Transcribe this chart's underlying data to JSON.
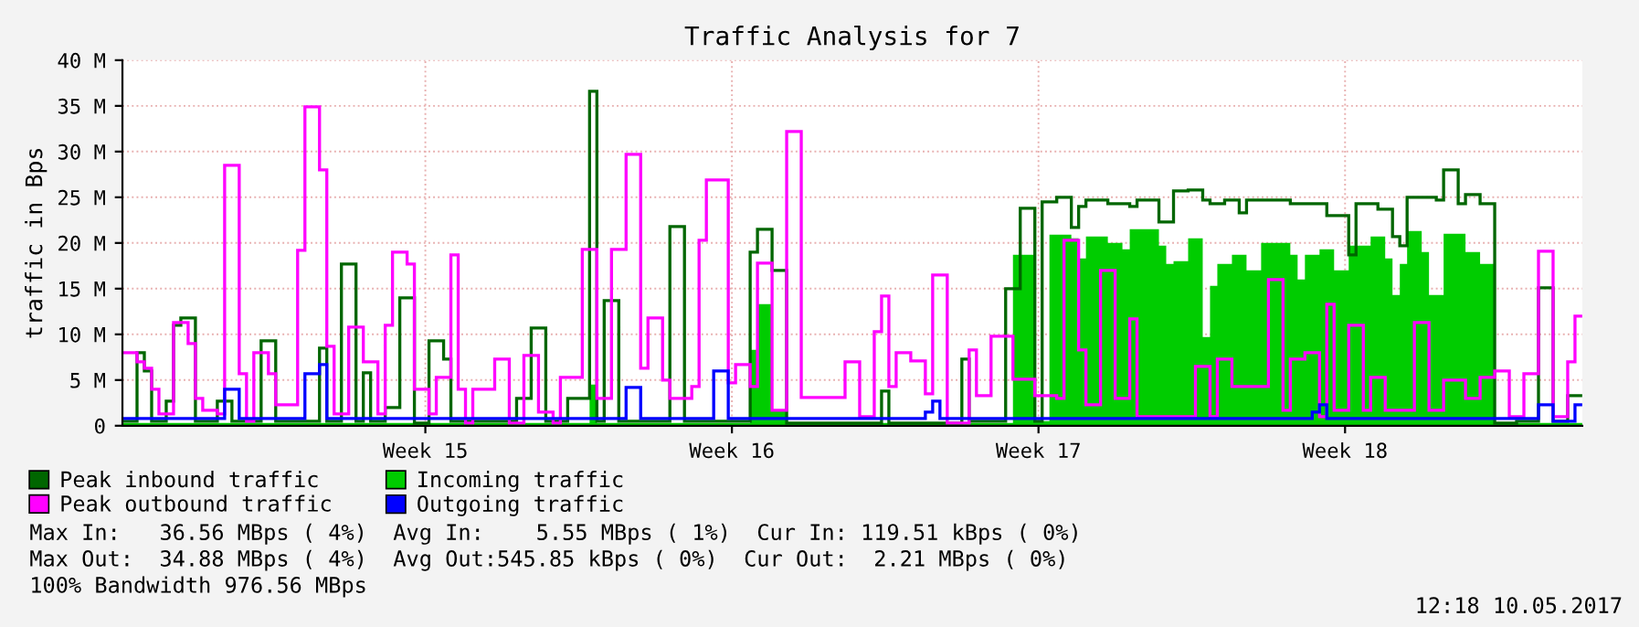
{
  "chart_data": {
    "type": "step",
    "title": "Traffic Analysis for 7",
    "ylabel": "traffic in Bps",
    "categories": [
      null,
      null,
      null,
      null,
      null,
      null,
      null,
      null,
      null,
      null,
      null,
      null,
      null,
      null,
      null,
      null,
      null,
      null,
      null,
      null,
      null,
      null,
      null,
      null,
      null,
      null,
      null,
      null,
      null,
      null,
      null,
      null,
      null,
      null,
      null,
      null,
      null,
      null,
      null,
      null,
      null,
      "Week 15",
      null,
      null,
      null,
      null,
      null,
      null,
      null,
      null,
      null,
      null,
      null,
      null,
      null,
      null,
      null,
      null,
      null,
      null,
      null,
      null,
      null,
      null,
      null,
      null,
      null,
      null,
      null,
      null,
      null,
      null,
      null,
      null,
      null,
      null,
      null,
      null,
      null,
      null,
      null,
      null,
      null,
      "Week 16",
      null,
      null,
      null,
      null,
      null,
      null,
      null,
      null,
      null,
      null,
      null,
      null,
      null,
      null,
      null,
      null,
      null,
      null,
      null,
      null,
      null,
      null,
      null,
      null,
      null,
      null,
      null,
      null,
      null,
      null,
      null,
      null,
      null,
      null,
      null,
      null,
      null,
      null,
      null,
      null,
      null,
      "Week 17",
      null,
      null,
      null,
      null,
      null,
      null,
      null,
      null,
      null,
      null,
      null,
      null,
      null,
      null,
      null,
      null,
      null,
      null,
      null,
      null,
      null,
      null,
      null,
      null,
      null,
      null,
      null,
      null,
      null,
      null,
      null,
      null,
      null,
      null,
      null,
      null,
      null,
      null,
      null,
      null,
      null,
      "Week 18",
      null,
      null,
      null,
      null,
      null,
      null,
      null,
      null,
      null,
      null,
      null,
      null,
      null,
      null,
      null,
      null,
      null,
      null,
      null,
      null,
      null,
      null,
      null,
      null,
      null,
      null,
      null,
      null,
      null,
      null,
      null,
      null
    ],
    "ylim": [
      0,
      40
    ],
    "yticks": [
      0,
      {
        "value": 5,
        "label": "5 M"
      },
      {
        "value": 10,
        "label": "10 M"
      },
      {
        "value": 15,
        "label": "15 M"
      },
      {
        "value": 20,
        "label": "20 M"
      },
      {
        "value": 25,
        "label": "25 M"
      },
      {
        "value": 30,
        "label": "30 M"
      },
      {
        "value": 35,
        "label": "35 M"
      },
      {
        "value": 40,
        "label": "40 M"
      }
    ],
    "grid": true,
    "legend": "bottom",
    "series": [
      {
        "name": "Incoming traffic",
        "type": "area",
        "color": "#00cc00",
        "values": [
          0.3,
          0.3,
          0.3,
          0.3,
          0.3,
          0.3,
          0.3,
          0.3,
          0.3,
          0.3,
          0.3,
          0.3,
          0.3,
          0.3,
          0.3,
          0.3,
          0.3,
          0.3,
          0.3,
          0.3,
          0.3,
          0.3,
          0.3,
          0.3,
          0.3,
          0.3,
          0.3,
          0.3,
          0.3,
          0.3,
          0.3,
          0.3,
          0.3,
          0.3,
          0.3,
          0.3,
          0.3,
          0.3,
          0.3,
          0.3,
          0.3,
          0.3,
          0.3,
          0.3,
          0.3,
          0.3,
          0.3,
          0.3,
          0.3,
          0.3,
          0.3,
          0.3,
          0.3,
          0.3,
          0.3,
          0.3,
          0.3,
          0.3,
          0.3,
          0.3,
          0.3,
          0.3,
          0.3,
          0.3,
          4.5,
          0.3,
          0.3,
          0.3,
          0.3,
          0.3,
          0.3,
          0.3,
          0.3,
          0.3,
          0.3,
          0.3,
          0.3,
          0.3,
          0.3,
          0.3,
          0.3,
          0.3,
          0.3,
          0.3,
          0.3,
          0.3,
          8.3,
          13.3,
          13.3,
          1.7,
          1.7,
          0.3,
          0.3,
          0.3,
          0.3,
          0.3,
          0.3,
          0.3,
          0.3,
          0.3,
          0.3,
          0.3,
          0.3,
          0.3,
          0.3,
          0.3,
          0.3,
          0.3,
          0.3,
          0.3,
          0.3,
          0.3,
          0.3,
          0.3,
          0.3,
          0.3,
          0.3,
          0.3,
          0.3,
          0.3,
          0.3,
          0.3,
          18.7,
          18.7,
          18.7,
          0.5,
          0.5,
          20.9,
          20.9,
          20.9,
          20.5,
          18.3,
          20.7,
          20.7,
          20.7,
          20,
          20,
          19.3,
          21.5,
          21.5,
          21.5,
          21.5,
          19.7,
          17.7,
          18,
          18,
          20.5,
          20.5,
          9.7,
          15.3,
          17.7,
          17.7,
          18.7,
          18.7,
          17,
          17,
          20,
          20,
          20,
          20,
          18.7,
          16,
          18.7,
          18.7,
          19.3,
          19.3,
          17,
          17,
          19.7,
          19.7,
          19.7,
          20.7,
          20.7,
          18.3,
          14.3,
          17.7,
          21.3,
          21.3,
          19,
          14.3,
          14.3,
          21,
          21,
          21,
          19,
          19,
          17.7,
          17.7,
          0.3,
          0.3,
          0.3,
          0.3,
          0.3,
          0.3,
          0.3,
          0.3,
          0.3,
          0.3,
          0.3,
          0.3
        ]
      },
      {
        "name": "Peak inbound traffic",
        "color": "#006600",
        "values": [
          0.5,
          0.5,
          8,
          6,
          0.5,
          0.5,
          2.7,
          11,
          11.8,
          11.8,
          0.5,
          0.5,
          0.5,
          2.7,
          2.7,
          0.5,
          0.5,
          0.5,
          0.5,
          9.3,
          9.3,
          0.5,
          0.5,
          0.5,
          0.5,
          0.5,
          0.5,
          8.5,
          0.5,
          0.5,
          17.7,
          17.7,
          0.5,
          5.8,
          0.5,
          0.5,
          2,
          2,
          14,
          14,
          0.3,
          0.3,
          9.3,
          9.3,
          7.3,
          0.5,
          0.5,
          0.5,
          0.5,
          0.5,
          0.5,
          0.5,
          0.5,
          0.5,
          3,
          3,
          10.7,
          10.7,
          0.5,
          0.5,
          0.5,
          3,
          3,
          3,
          36.6,
          0.5,
          13.7,
          13.7,
          0.5,
          0.5,
          0.5,
          0.5,
          0.5,
          0.5,
          0.5,
          21.8,
          21.8,
          0.5,
          0.5,
          0.5,
          0.5,
          0.5,
          0.5,
          0.5,
          0.5,
          0.5,
          19,
          21.5,
          21.5,
          17,
          17,
          0.3,
          0.3,
          0.3,
          0.3,
          0.3,
          0.3,
          0.3,
          0.3,
          0.3,
          0.3,
          0.3,
          0.3,
          0.3,
          3.8,
          0.3,
          0.3,
          0.3,
          0.3,
          0.3,
          0.3,
          0.3,
          0.3,
          0.3,
          0.3,
          7.3,
          0.5,
          0.5,
          0.5,
          0.5,
          0.5,
          15,
          15,
          23.8,
          23.8,
          0.5,
          24.5,
          24.5,
          25,
          25,
          21.7,
          24,
          24.7,
          24.7,
          24.7,
          24.3,
          24.3,
          24.3,
          24,
          24.7,
          24.7,
          24.7,
          22.3,
          22.3,
          25.7,
          25.7,
          25.8,
          25.8,
          24.7,
          24.3,
          24.3,
          24.7,
          24.7,
          23.3,
          24.7,
          24.7,
          24.7,
          24.7,
          24.7,
          24.7,
          24.3,
          24.3,
          24.3,
          24.3,
          24.3,
          23,
          23,
          23,
          18.7,
          24.3,
          24.3,
          24.3,
          23.7,
          23.7,
          20.7,
          19.7,
          25,
          25,
          25,
          25,
          24.7,
          28,
          28,
          24.3,
          25.3,
          25.3,
          24.3,
          24.3,
          0.3,
          0.3,
          0.3,
          0.5,
          0.5,
          0.5,
          15.1,
          15.1,
          0.5,
          0.5,
          3.3,
          3.3
        ]
      },
      {
        "name": "Peak outbound traffic",
        "color": "#ff00ff",
        "values": [
          8,
          8,
          7,
          6.3,
          4,
          1.3,
          1.3,
          11.3,
          11.3,
          9,
          3,
          1.7,
          1.7,
          1.3,
          28.5,
          28.5,
          5.7,
          0.5,
          8,
          8,
          5.7,
          2.3,
          2.3,
          2.3,
          19.2,
          34.9,
          34.9,
          28,
          8.7,
          1.3,
          1.3,
          10.8,
          10.8,
          7,
          7,
          1.3,
          11,
          19,
          19,
          17.7,
          4,
          4,
          1.3,
          5.3,
          5.3,
          18.7,
          4,
          0.3,
          4,
          4,
          4,
          7.3,
          7.3,
          0.3,
          0.3,
          7.7,
          7.7,
          1.5,
          1.5,
          0.3,
          5.3,
          5.3,
          5.3,
          19.3,
          19.3,
          3,
          3,
          19.3,
          19.3,
          29.7,
          29.7,
          6.3,
          11.8,
          11.8,
          5,
          3,
          3,
          3,
          4.3,
          20.3,
          26.9,
          26.9,
          26.9,
          4.7,
          6.7,
          6.7,
          4.3,
          17.8,
          17.8,
          1.7,
          1.7,
          32.2,
          32.2,
          3.1,
          3.1,
          3.1,
          3.1,
          3.1,
          3.1,
          7,
          7,
          1,
          1,
          10.3,
          14.2,
          4.3,
          8,
          8,
          7.1,
          7.1,
          3.5,
          16.5,
          16.5,
          0.3,
          0.3,
          0.3,
          8.3,
          3.3,
          3.3,
          9.8,
          9.8,
          9.8,
          5.1,
          5.1,
          5.1,
          3.3,
          3.3,
          3.3,
          3,
          20.3,
          20.3,
          8.3,
          2.3,
          2.3,
          17,
          17,
          3,
          3,
          11.7,
          1,
          1,
          1,
          1,
          1,
          1,
          1,
          1,
          6.5,
          6.5,
          1,
          7.3,
          7.3,
          4.3,
          4.3,
          4.3,
          4.3,
          4.3,
          16,
          16,
          1.7,
          7.3,
          7.3,
          8,
          8,
          1,
          13.3,
          1.7,
          1.7,
          11,
          11,
          1.7,
          5.3,
          5.3,
          1.7,
          1.7,
          1.7,
          1.7,
          11.3,
          11.3,
          1.7,
          1.7,
          5,
          5,
          5,
          3,
          3,
          5.3,
          5.3,
          6,
          6,
          1,
          1,
          5.7,
          5.7,
          19.1,
          19.1,
          1,
          1,
          7,
          12
        ]
      },
      {
        "name": "Outgoing traffic",
        "color": "#0000ff",
        "values": [
          0.8,
          0.8,
          0.8,
          0.8,
          0.8,
          0.8,
          0.8,
          0.8,
          0.8,
          0.8,
          0.8,
          0.8,
          0.8,
          0.8,
          4,
          4,
          0.8,
          0.8,
          0.8,
          0.8,
          0.8,
          0.8,
          0.8,
          0.8,
          0.8,
          5.7,
          5.7,
          6.7,
          0.8,
          0.8,
          0.8,
          0.8,
          0.8,
          0.8,
          0.8,
          0.8,
          0.8,
          0.8,
          0.8,
          0.8,
          0.8,
          0.8,
          0.8,
          0.8,
          0.8,
          0.8,
          0.8,
          0.8,
          0.8,
          0.8,
          0.8,
          0.8,
          0.8,
          0.8,
          0.8,
          0.8,
          0.8,
          0.8,
          0.8,
          0.8,
          0.8,
          0.8,
          0.8,
          0.8,
          0.8,
          0.8,
          0.8,
          0.8,
          0.8,
          4.2,
          4.2,
          0.8,
          0.8,
          0.8,
          0.8,
          0.8,
          0.8,
          0.8,
          0.8,
          0.8,
          0.8,
          6,
          6,
          0.8,
          0.8,
          0.8,
          0.8,
          0.8,
          0.8,
          0.8,
          0.8,
          0.8,
          0.8,
          0.8,
          0.8,
          0.8,
          0.8,
          0.8,
          0.8,
          0.8,
          0.8,
          0.8,
          0.8,
          0.8,
          0.8,
          0.8,
          0.8,
          0.8,
          0.8,
          0.8,
          1.5,
          2.7,
          0.8,
          0.8,
          0.8,
          0.8,
          0.8,
          0.8,
          0.8,
          0.8,
          0.8,
          0.8,
          0.8,
          0.8,
          0.8,
          0.8,
          0.8,
          0.8,
          0.8,
          0.8,
          0.8,
          0.8,
          0.8,
          0.8,
          0.8,
          0.8,
          0.8,
          0.8,
          0.8,
          0.8,
          0.8,
          0.8,
          0.8,
          0.8,
          0.8,
          0.8,
          0.8,
          0.8,
          0.8,
          0.8,
          0.8,
          0.8,
          0.8,
          0.8,
          0.8,
          0.8,
          0.8,
          0.8,
          0.8,
          0.8,
          0.8,
          0.8,
          0.8,
          1.5,
          2.3,
          0.8,
          0.8,
          0.8,
          0.8,
          0.8,
          0.8,
          0.8,
          0.8,
          0.8,
          0.8,
          0.8,
          0.8,
          0.8,
          0.8,
          0.8,
          0.8,
          0.8,
          0.8,
          0.8,
          0.8,
          0.8,
          0.8,
          0.8,
          0.8,
          0.8,
          0.8,
          0.8,
          0.8,
          0.8,
          2.3,
          2.3,
          0.5,
          0.5,
          0.5,
          2.3
        ]
      }
    ],
    "annotations": [
      "Max In:   36.56 MBps ( 4%)  Avg In:    5.55 MBps ( 1%)  Cur In: 119.51 kBps ( 0%)",
      "Max Out:  34.88 MBps ( 4%)  Avg Out:545.85 kBps ( 0%)  Cur Out:  2.21 MBps ( 0%)",
      "100% Bandwidth 976.56 MBps",
      "12:18 10.05.2017"
    ]
  }
}
